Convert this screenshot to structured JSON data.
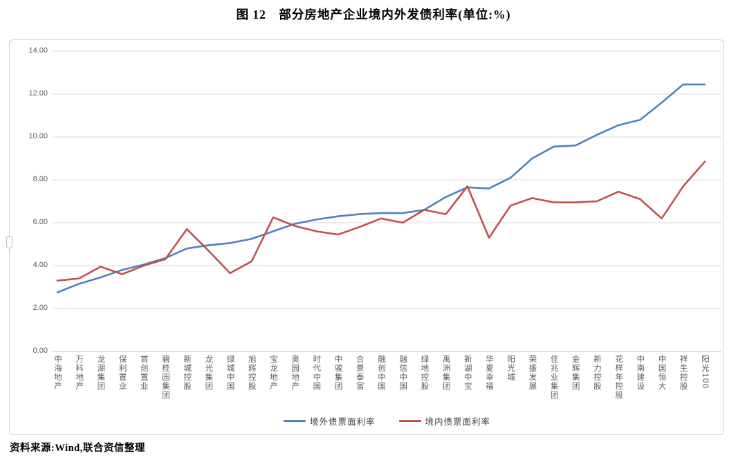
{
  "page": {
    "title": "图 12　部分房地产企业境内外发债利率(单位:%)",
    "source": "资料来源:Wind,联合资信整理"
  },
  "chart_data": {
    "type": "line",
    "title": "部分房地产企业境内外发债利率(单位:%)",
    "figure_label": "图 12",
    "unit": "%",
    "categories": [
      "中海地产",
      "万科地产",
      "龙湖集团",
      "保利置业",
      "首创置业",
      "碧桂园集团",
      "新城控股",
      "龙光集团",
      "绿城中国",
      "旭辉控股",
      "宝龙地产",
      "奥园地产",
      "时代中国",
      "中骏集团",
      "合景泰富",
      "融创中国",
      "融信中国",
      "绿地控股",
      "禹洲集团",
      "新湖中宝",
      "华夏幸福",
      "阳光城",
      "荣盛发展",
      "佳兆业集团",
      "金辉集团",
      "新力控股",
      "花样年控股",
      "中南建设",
      "中国恒大",
      "祥生控股",
      "阳光100"
    ],
    "series": [
      {
        "name": "境外债票面利率",
        "color": "#4F81BD",
        "values": [
          2.75,
          3.15,
          3.45,
          3.8,
          4.05,
          4.35,
          4.8,
          4.95,
          5.05,
          5.25,
          5.6,
          5.95,
          6.15,
          6.3,
          6.4,
          6.45,
          6.45,
          6.6,
          7.2,
          7.65,
          7.6,
          8.1,
          9.0,
          9.55,
          9.6,
          10.1,
          10.55,
          10.8,
          11.6,
          12.45,
          12.45
        ]
      },
      {
        "name": "境内债票面利率",
        "color": "#C0504D",
        "values": [
          3.3,
          3.4,
          3.95,
          3.6,
          4.0,
          4.3,
          5.7,
          4.7,
          3.65,
          4.2,
          6.25,
          5.85,
          5.6,
          5.45,
          5.8,
          6.2,
          6.0,
          6.6,
          6.4,
          7.7,
          5.3,
          6.8,
          7.15,
          6.95,
          6.95,
          7.0,
          7.45,
          7.1,
          6.2,
          7.7,
          8.85
        ]
      }
    ],
    "ylim": [
      0,
      14
    ],
    "y_ticks": [
      "0.00",
      "2.00",
      "4.00",
      "6.00",
      "8.00",
      "10.00",
      "12.00",
      "14.00"
    ],
    "tick_values": [
      0,
      2,
      4,
      6,
      8,
      10,
      12,
      14
    ],
    "grid": true,
    "legend_position": "bottom",
    "gridline_color": "#D9D9D9",
    "axis_line_color": "#BFBFBF",
    "axis_text_color": "#595959"
  }
}
